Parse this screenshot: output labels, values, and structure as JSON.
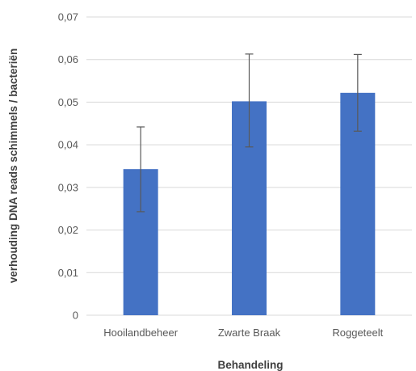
{
  "chart_data": {
    "type": "bar",
    "categories": [
      "Hooilandbeheer",
      "Zwarte Braak",
      "Roggeteelt"
    ],
    "values": [
      0.0343,
      0.0502,
      0.0522
    ],
    "error_low": [
      0.0243,
      0.0395,
      0.0432
    ],
    "error_high": [
      0.0442,
      0.0613,
      0.0612
    ],
    "xlabel": "Behandeling",
    "ylabel": "verhouding DNA reads schimmels / bacteriën",
    "ylim": [
      0,
      0.07
    ],
    "yticks": [
      0,
      0.01,
      0.02,
      0.03,
      0.04,
      0.05,
      0.06,
      0.07
    ],
    "ytick_labels": [
      "0",
      "0,01",
      "0,02",
      "0,03",
      "0,04",
      "0,05",
      "0,06",
      "0,07"
    ],
    "grid": true,
    "bar_color": "#4472C4",
    "grid_color": "#D9D9D9",
    "error_bar_color": "#595959"
  }
}
